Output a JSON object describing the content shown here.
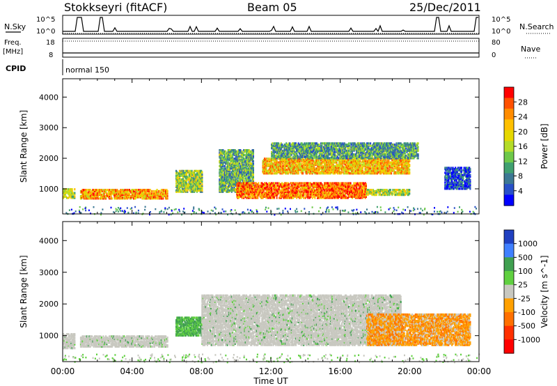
{
  "header": {
    "station": "Stokkseyri (fitACF)",
    "beam": "Beam 05",
    "date": "25/Dec/2011"
  },
  "aux_panels": {
    "nsky_label": "N.Sky",
    "nsky_ticks": [
      "10^5",
      "10^0"
    ],
    "nsearch_label": "N.Search",
    "nsearch_ticks": [
      "10^5",
      "10^0"
    ],
    "freq_label": "Freq.",
    "freq_unit": "[MHz]",
    "freq_ticks": [
      "18",
      "8"
    ],
    "nave_label": "Nave",
    "nave_ticks": [
      "80",
      "0"
    ],
    "cpid_label": "CPID",
    "cpid_value": "normal 150"
  },
  "chart_data": [
    {
      "type": "heatmap",
      "name": "power-panel",
      "ylabel": "Slant Range [km]",
      "xlabel": "",
      "ylim": [
        180,
        4600
      ],
      "yticks": [
        1000,
        2000,
        3000,
        4000
      ],
      "xlim_hours": [
        0,
        24
      ],
      "colorbar": {
        "label": "Power [dB]",
        "ticks": [
          "28",
          "24",
          "20",
          "16",
          "12",
          "8",
          "4"
        ],
        "colors": [
          "#ff0000",
          "#ff5000",
          "#ff8c00",
          "#ffc000",
          "#e6d800",
          "#b4dc28",
          "#6ec84a",
          "#40a070",
          "#3c7894",
          "#2850c8",
          "#0000ff"
        ]
      },
      "regions": [
        {
          "t0": 0.0,
          "t1": 0.7,
          "r0": 700,
          "r1": 1000,
          "level": 0.5
        },
        {
          "t0": 1.0,
          "t1": 6.0,
          "r0": 680,
          "r1": 1000,
          "level": 0.75
        },
        {
          "t0": 6.5,
          "t1": 8.0,
          "r0": 900,
          "r1": 1600,
          "level": 0.45
        },
        {
          "t0": 9.0,
          "t1": 11.0,
          "r0": 900,
          "r1": 2300,
          "level": 0.35
        },
        {
          "t0": 10.0,
          "t1": 17.5,
          "r0": 700,
          "r1": 1200,
          "level": 0.85
        },
        {
          "t0": 11.5,
          "t1": 20.0,
          "r0": 1500,
          "r1": 2000,
          "level": 0.7
        },
        {
          "t0": 12.0,
          "t1": 20.5,
          "r0": 2000,
          "r1": 2500,
          "level": 0.3
        },
        {
          "t0": 17.5,
          "t1": 20.0,
          "r0": 800,
          "r1": 1000,
          "level": 0.5
        },
        {
          "t0": 22.0,
          "t1": 23.5,
          "r0": 1000,
          "r1": 1700,
          "level": 0.1
        }
      ]
    },
    {
      "type": "heatmap",
      "name": "velocity-panel",
      "ylabel": "Slant Range [km]",
      "xlabel": "Time UT",
      "ylim": [
        180,
        4600
      ],
      "yticks": [
        1000,
        2000,
        3000,
        4000
      ],
      "xticks": [
        "00:00",
        "04:00",
        "08:00",
        "12:00",
        "16:00",
        "20:00",
        "00:00"
      ],
      "xlim_hours": [
        0,
        24
      ],
      "colorbar": {
        "label": "Velocity [m s^-1]",
        "ticks": [
          "1000",
          "500",
          "100",
          "25",
          "-25",
          "-100",
          "-500",
          "-1000"
        ],
        "colors": [
          "#2040c0",
          "#4080ff",
          "#40a050",
          "#60d040",
          "#c8c8c0",
          "#ffa000",
          "#ff7000",
          "#ff3000",
          "#ff0000"
        ]
      },
      "regions": [
        {
          "t0": 0.0,
          "t1": 0.7,
          "r0": 600,
          "r1": 1050,
          "kind": "gray"
        },
        {
          "t0": 1.0,
          "t1": 6.0,
          "r0": 650,
          "r1": 1000,
          "kind": "gray"
        },
        {
          "t0": 6.5,
          "t1": 8.0,
          "r0": 1000,
          "r1": 1600,
          "kind": "green"
        },
        {
          "t0": 8.0,
          "t1": 19.5,
          "r0": 700,
          "r1": 2300,
          "kind": "gray"
        },
        {
          "t0": 17.5,
          "t1": 23.5,
          "r0": 700,
          "r1": 1700,
          "kind": "orange"
        }
      ]
    }
  ]
}
